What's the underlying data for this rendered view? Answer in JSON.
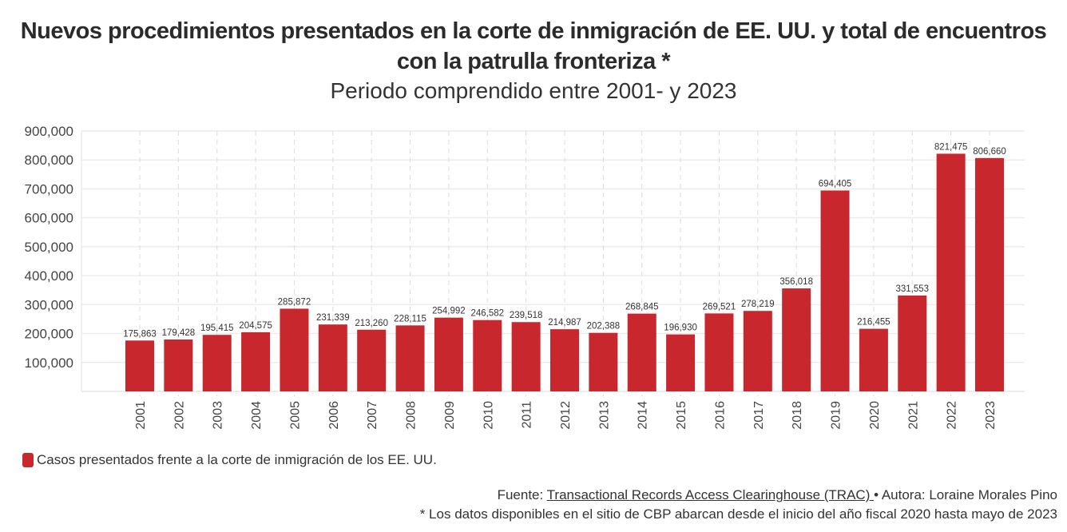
{
  "chart_data": {
    "type": "bar",
    "title": "Nuevos procedimientos presentados en la corte de inmigración de EE. UU. y total de encuentros con la patrulla fronteriza *",
    "subtitle": "Periodo comprendido entre 2001- y 2023",
    "xlabel": "",
    "ylabel": "",
    "ylim": [
      0,
      900000
    ],
    "yticks": [
      100000,
      200000,
      300000,
      400000,
      500000,
      600000,
      700000,
      800000,
      900000
    ],
    "ytick_labels": [
      "100,000",
      "200,000",
      "300,000",
      "400,000",
      "500,000",
      "600,000",
      "700,000",
      "800,000",
      "900,000"
    ],
    "grid": true,
    "categories": [
      "2001",
      "2002",
      "2003",
      "2004",
      "2005",
      "2006",
      "2007",
      "2008",
      "2009",
      "2010",
      "2011",
      "2012",
      "2013",
      "2014",
      "2015",
      "2016",
      "2017",
      "2018",
      "2019",
      "2020",
      "2021",
      "2022",
      "2023"
    ],
    "series": [
      {
        "name": "Casos presentados frente a la corte de inmigración de los EE. UU.",
        "color": "#c8272d",
        "values": [
          175863,
          179428,
          195415,
          204575,
          285872,
          231339,
          213260,
          228115,
          254992,
          246582,
          239518,
          214987,
          202388,
          268845,
          196930,
          269521,
          278219,
          356018,
          694405,
          216455,
          331553,
          821475,
          806660
        ],
        "labels": [
          "175,863",
          "179,428",
          "195,415",
          "204,575",
          "285,872",
          "231,339",
          "213,260",
          "228,115",
          "254,992",
          "246,582",
          "239,518",
          "214,987",
          "202,388",
          "268,845",
          "196,930",
          "269,521",
          "278,219",
          "356,018",
          "694,405",
          "216,455",
          "331,553",
          "821,475",
          "806,660"
        ]
      }
    ],
    "legend": "bottom-left"
  },
  "header": {
    "title": "Nuevos procedimientos presentados en la corte de inmigración de EE. UU. y total de encuentros con la patrulla fronteriza *",
    "subtitle": "Periodo comprendido entre 2001- y 2023"
  },
  "legend": {
    "label": "Casos presentados frente a la corte de inmigración de los EE. UU.",
    "color": "#c8272d"
  },
  "footer": {
    "source_prefix": "Fuente: ",
    "source_link": "Transactional Records Access Clearinghouse (TRAC) ",
    "author": "• Autora: Loraine Morales Pino",
    "note": "* Los datos disponibles en el sitio de CBP abarcan desde el inicio del año fiscal 2020 hasta mayo de 2023"
  }
}
